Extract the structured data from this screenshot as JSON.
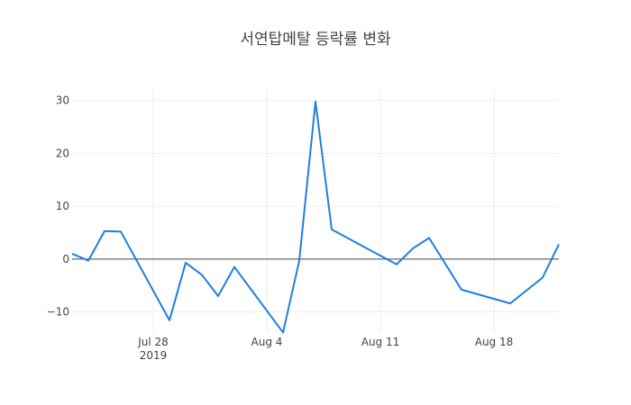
{
  "chart_data": {
    "type": "line",
    "title": "서연탑메탈 등락률 변화",
    "xlabel": "",
    "ylabel": "",
    "xlim": [
      "2019-07-23",
      "2019-08-22"
    ],
    "ylim": [
      -14,
      32
    ],
    "x_ticks": [
      {
        "date": "2019-07-28",
        "label": "Jul 28",
        "sublabel": "2019"
      },
      {
        "date": "2019-08-04",
        "label": "Aug 4",
        "sublabel": ""
      },
      {
        "date": "2019-08-11",
        "label": "Aug 11",
        "sublabel": ""
      },
      {
        "date": "2019-08-18",
        "label": "Aug 18",
        "sublabel": ""
      }
    ],
    "y_ticks": [
      {
        "value": 30,
        "label": "30"
      },
      {
        "value": 20,
        "label": "20"
      },
      {
        "value": 10,
        "label": "10"
      },
      {
        "value": 0,
        "label": "0"
      },
      {
        "value": -10,
        "label": "−10"
      }
    ],
    "grid": true,
    "zero_line": true,
    "series": [
      {
        "color": "#1f7fe0",
        "x": [
          "2019-07-23",
          "2019-07-24",
          "2019-07-25",
          "2019-07-26",
          "2019-07-29",
          "2019-07-30",
          "2019-07-31",
          "2019-08-01",
          "2019-08-02",
          "2019-08-05",
          "2019-08-06",
          "2019-08-07",
          "2019-08-08",
          "2019-08-12",
          "2019-08-13",
          "2019-08-14",
          "2019-08-16",
          "2019-08-19",
          "2019-08-21",
          "2019-08-22"
        ],
        "y": [
          1.0,
          -0.3,
          5.3,
          5.2,
          -11.6,
          -0.7,
          -3.0,
          -7.0,
          -1.5,
          -13.9,
          -0.3,
          29.8,
          5.6,
          -1.0,
          2.0,
          4.0,
          -5.8,
          -8.4,
          -3.5,
          2.8
        ]
      }
    ]
  }
}
